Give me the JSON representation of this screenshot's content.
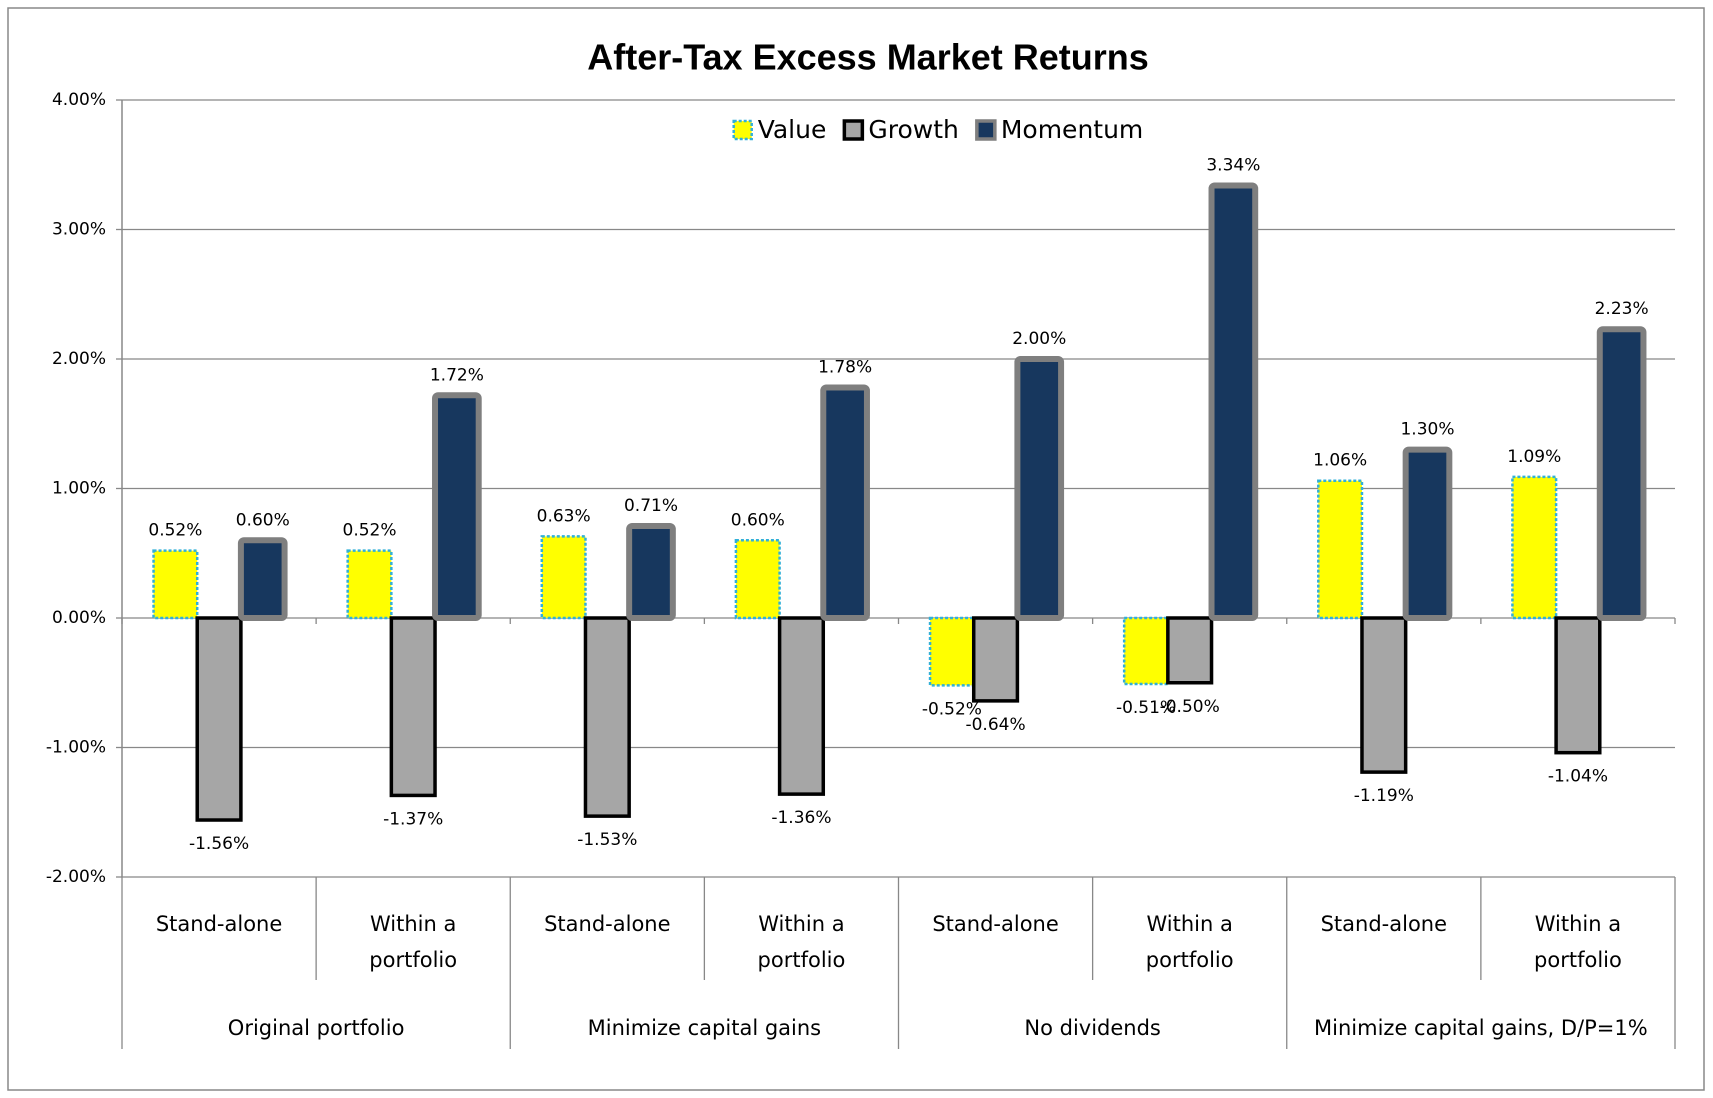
{
  "chart_data": {
    "type": "bar",
    "title": "After-Tax Excess Market Returns",
    "categories": [
      "Stand-alone",
      "Within a portfolio",
      "Stand-alone",
      "Within a portfolio",
      "Stand-alone",
      "Within a portfolio",
      "Stand-alone",
      "Within a portfolio"
    ],
    "category_groups": [
      "Original portfolio",
      "Minimize capital gains",
      "No dividends",
      "Minimize capital gains, D/P=1%"
    ],
    "series": [
      {
        "name": "Value",
        "color": "#ffff00",
        "border": "#31b0d8",
        "values": [
          0.52,
          0.52,
          0.63,
          0.6,
          -0.52,
          -0.51,
          1.06,
          1.09
        ],
        "value_labels": [
          "0.52%",
          "0.52%",
          "0.63%",
          "0.60%",
          "-0.52%",
          "-0.51%",
          "1.06%",
          "1.09%"
        ]
      },
      {
        "name": "Growth",
        "color": "#a6a6a6",
        "border": "#000000",
        "values": [
          -1.56,
          -1.37,
          -1.53,
          -1.36,
          -0.64,
          -0.5,
          -1.19,
          -1.04
        ],
        "value_labels": [
          "-1.56%",
          "-1.37%",
          "-1.53%",
          "-1.36%",
          "-0.64%",
          "-0.50%",
          "-1.19%",
          "-1.04%"
        ]
      },
      {
        "name": "Momentum",
        "color": "#17375e",
        "border": "#7f7f7f",
        "values": [
          0.6,
          1.72,
          0.71,
          1.78,
          2.0,
          3.34,
          1.3,
          2.23
        ],
        "value_labels": [
          "0.60%",
          "1.72%",
          "0.71%",
          "1.78%",
          "2.00%",
          "3.34%",
          "1.30%",
          "2.23%"
        ]
      }
    ],
    "ylim": [
      -2,
      4
    ],
    "yticks": [
      {
        "value": -2,
        "label": "-2.00%"
      },
      {
        "value": -1,
        "label": "-1.00%"
      },
      {
        "value": 0,
        "label": "0.00%"
      },
      {
        "value": 1,
        "label": "1.00%"
      },
      {
        "value": 2,
        "label": "2.00%"
      },
      {
        "value": 3,
        "label": "3.00%"
      },
      {
        "value": 4,
        "label": "4.00%"
      }
    ],
    "grid": true,
    "legend": "top"
  }
}
